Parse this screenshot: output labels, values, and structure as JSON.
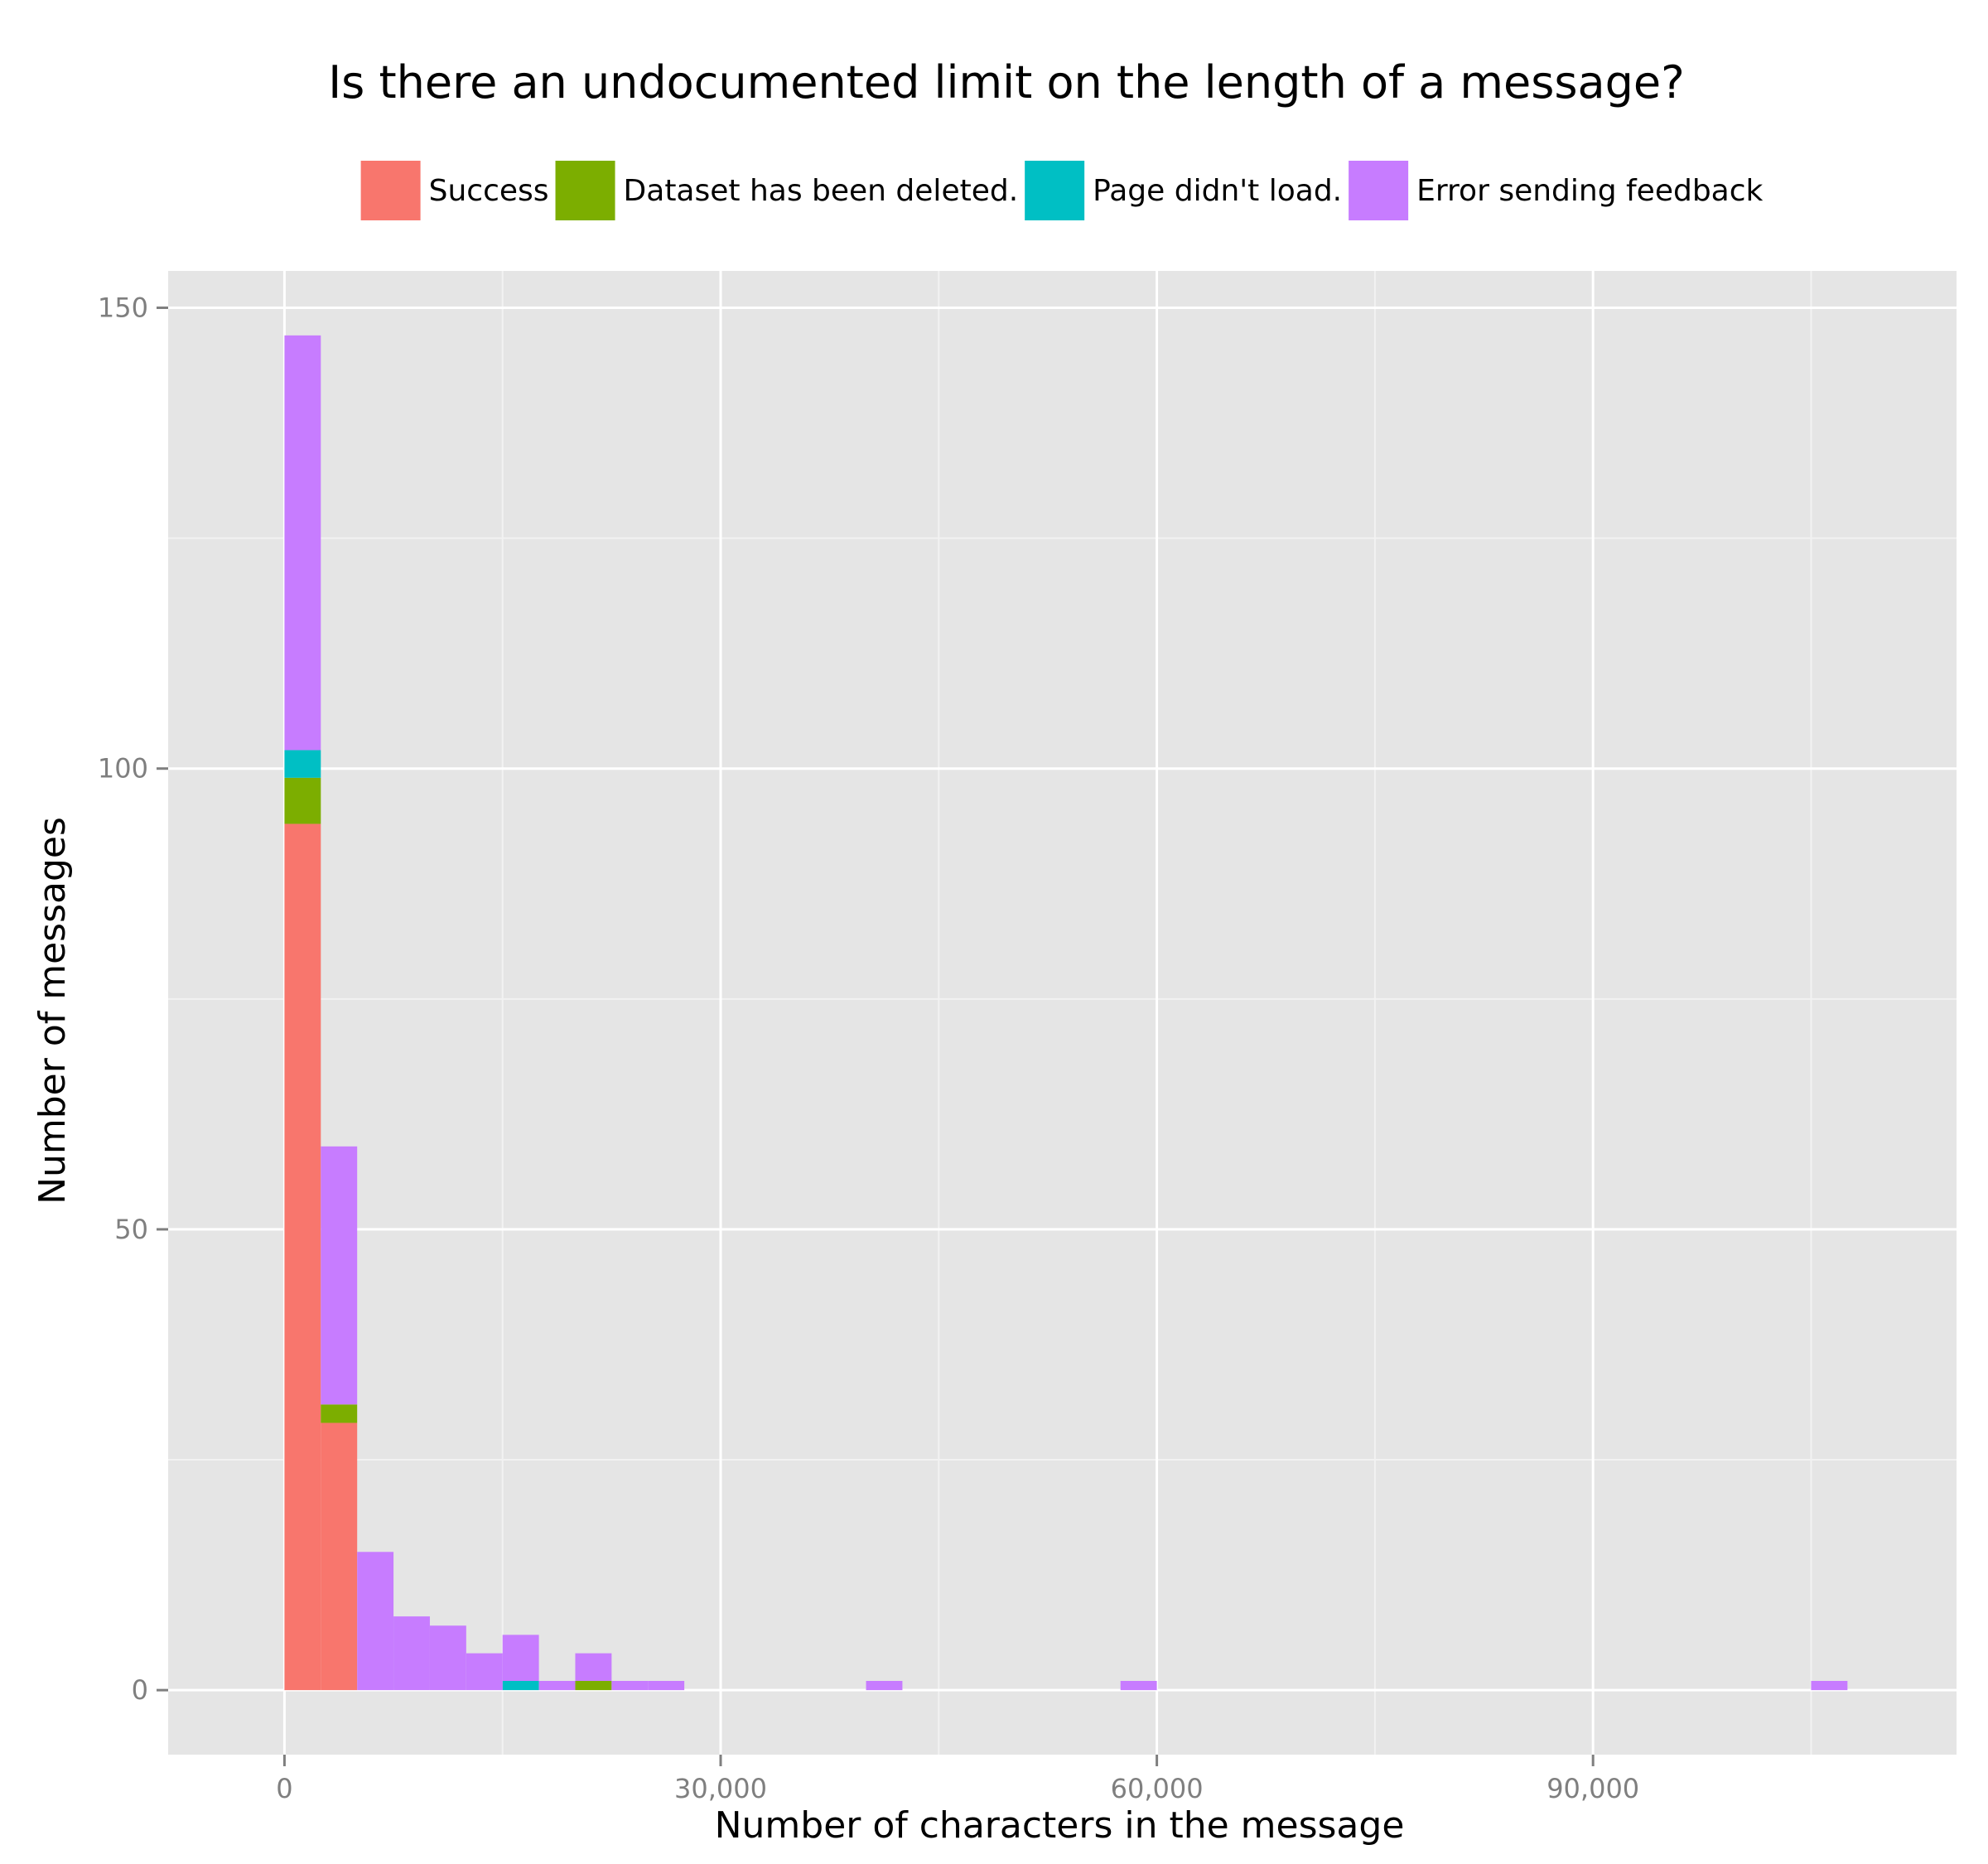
{
  "chart_data": {
    "type": "bar",
    "title": "Is there an undocumented limit on the length of a message?",
    "xlabel": "Number of characters in the message",
    "ylabel": "Number of messages",
    "xlim": [
      -8000,
      115000
    ],
    "ylim": [
      -7,
      154
    ],
    "x_ticks": [
      0,
      30000,
      60000,
      90000
    ],
    "x_tick_labels": [
      "0",
      "30,000",
      "60,000",
      "90,000"
    ],
    "y_ticks": [
      0,
      50,
      100,
      150
    ],
    "y_tick_labels": [
      "0",
      "50",
      "100",
      "150"
    ],
    "grid": true,
    "stacked": true,
    "legend_position": "top",
    "bin_width": 2500,
    "series": [
      {
        "name": "Success",
        "color": "#F8766D",
        "bins": [
          {
            "x0": 0,
            "x1": 2500,
            "value": 94
          },
          {
            "x0": 2500,
            "x1": 5000,
            "value": 29
          }
        ]
      },
      {
        "name": "Dataset has been deleted.",
        "color": "#7CAE00",
        "bins": [
          {
            "x0": 0,
            "x1": 2500,
            "value": 5
          },
          {
            "x0": 2500,
            "x1": 5000,
            "value": 2
          },
          {
            "x0": 20000,
            "x1": 22500,
            "value": 1
          }
        ]
      },
      {
        "name": "Page didn't load.",
        "color": "#00BFC4",
        "bins": [
          {
            "x0": 0,
            "x1": 2500,
            "value": 3
          },
          {
            "x0": 15000,
            "x1": 17500,
            "value": 1
          }
        ]
      },
      {
        "name": "Error sending feedback",
        "color": "#C77CFF",
        "bins": [
          {
            "x0": 0,
            "x1": 2500,
            "value": 45
          },
          {
            "x0": 2500,
            "x1": 5000,
            "value": 28
          },
          {
            "x0": 5000,
            "x1": 7500,
            "value": 15
          },
          {
            "x0": 7500,
            "x1": 10000,
            "value": 8
          },
          {
            "x0": 10000,
            "x1": 12500,
            "value": 7
          },
          {
            "x0": 12500,
            "x1": 15000,
            "value": 4
          },
          {
            "x0": 15000,
            "x1": 17500,
            "value": 5
          },
          {
            "x0": 17500,
            "x1": 20000,
            "value": 1
          },
          {
            "x0": 20000,
            "x1": 22500,
            "value": 3
          },
          {
            "x0": 22500,
            "x1": 25000,
            "value": 1
          },
          {
            "x0": 25000,
            "x1": 27500,
            "value": 1
          },
          {
            "x0": 40000,
            "x1": 42500,
            "value": 1
          },
          {
            "x0": 57500,
            "x1": 60000,
            "value": 1
          },
          {
            "x0": 105000,
            "x1": 107500,
            "value": 1
          }
        ]
      }
    ],
    "style": {
      "panel_background": "#E5E5E5",
      "grid_major": "#FFFFFF",
      "grid_minor": "#F2F2F2",
      "tick_color": "#7F7F7F"
    }
  }
}
